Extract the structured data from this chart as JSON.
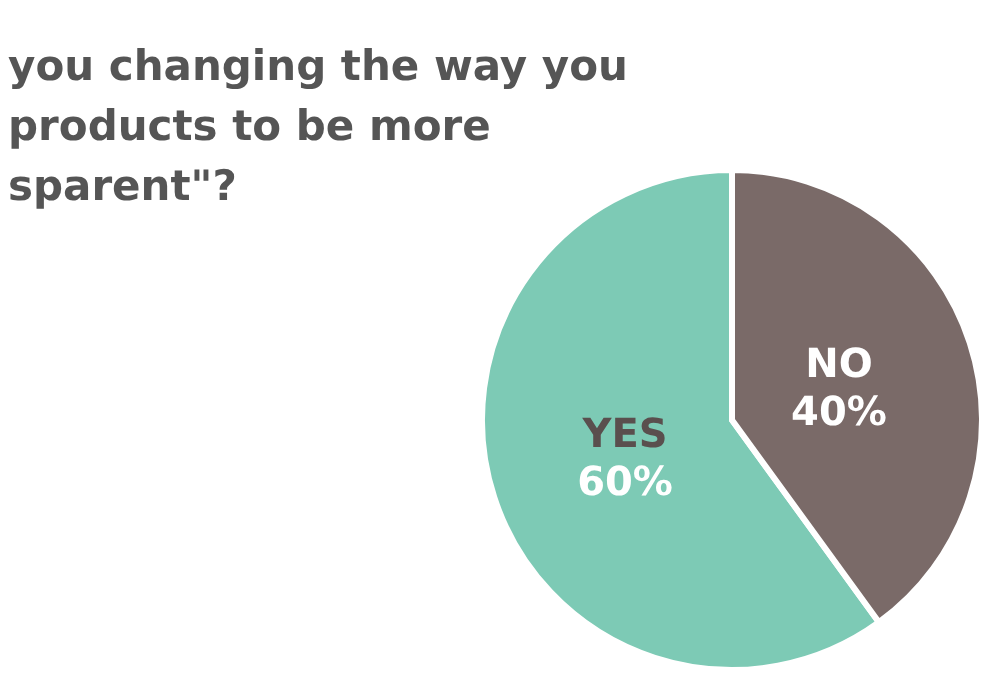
{
  "chart_data": {
    "type": "pie",
    "title": "you changing the way you\nproducts to be more\nsparent\"?",
    "categories": [
      "YES",
      "NO"
    ],
    "values": [
      60,
      40
    ],
    "colors": [
      "#7dcab5",
      "#7a6a68"
    ],
    "value_labels": [
      "60%",
      "40%"
    ],
    "legend": false
  }
}
